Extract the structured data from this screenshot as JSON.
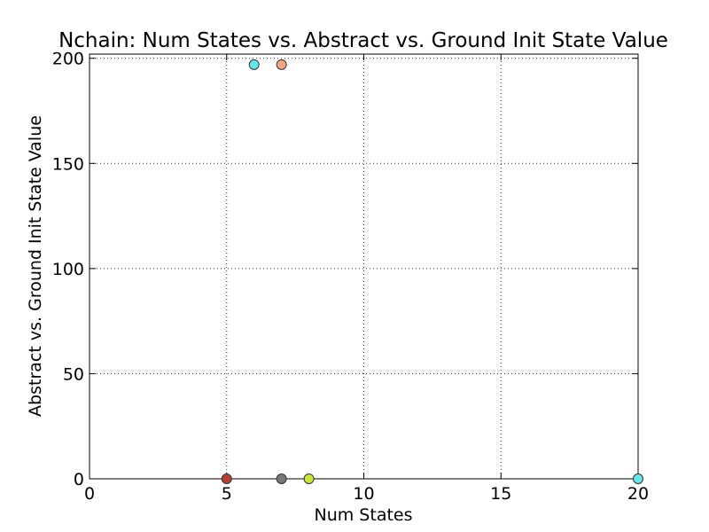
{
  "chart_data": {
    "type": "scatter",
    "title": "Nchain: Num States vs. Abstract vs. Ground Init State Value",
    "xlabel": "Num States",
    "ylabel": "Abstract vs. Ground Init State Value",
    "xlim": [
      0,
      20
    ],
    "ylim": [
      0,
      202
    ],
    "x_ticks": [
      0,
      5,
      10,
      15,
      20
    ],
    "y_ticks": [
      0,
      50,
      100,
      150,
      200
    ],
    "grid": true,
    "legend": "none",
    "points": [
      {
        "x": 6,
        "y": 197,
        "color": "#66e6e6"
      },
      {
        "x": 7,
        "y": 197,
        "color": "#f4a582"
      },
      {
        "x": 5,
        "y": 0,
        "color": "#b2412e"
      },
      {
        "x": 7,
        "y": 0,
        "color": "#777777"
      },
      {
        "x": 8,
        "y": 0,
        "color": "#c6e63a"
      },
      {
        "x": 20,
        "y": 0,
        "color": "#66e6e6"
      }
    ]
  }
}
